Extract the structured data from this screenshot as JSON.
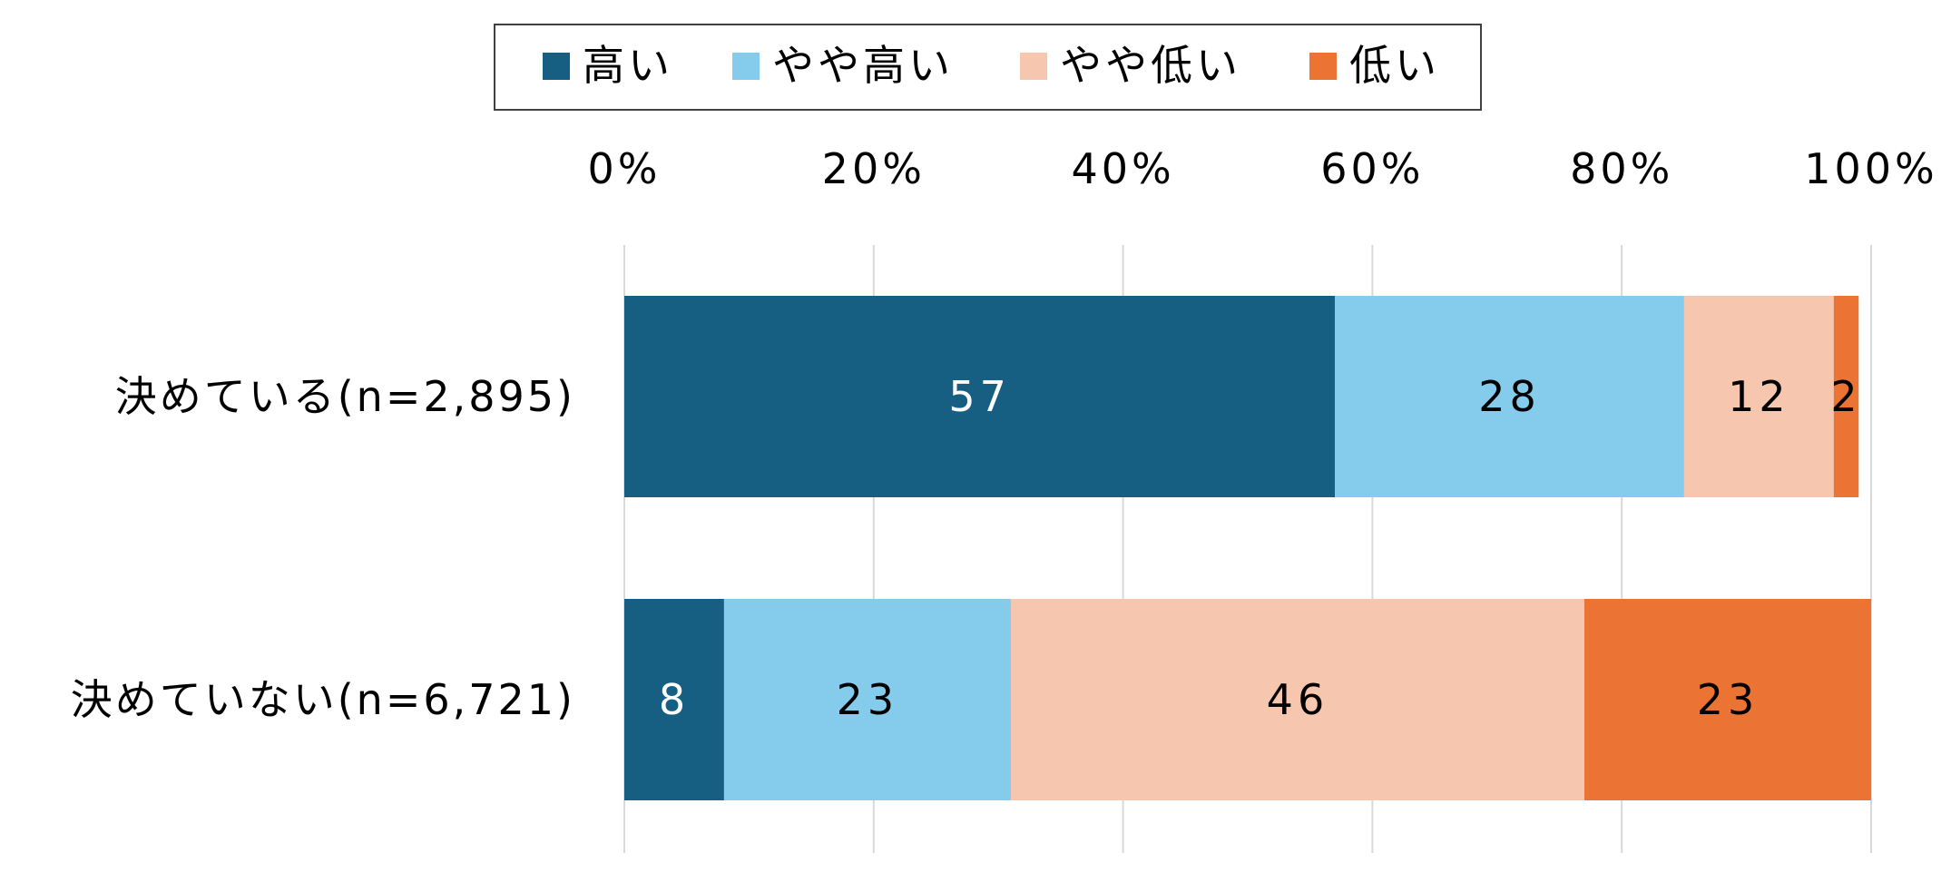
{
  "chart_data": {
    "type": "bar",
    "orientation": "horizontal",
    "stacked": "percent",
    "legend_position": "top",
    "grid": "vertical",
    "categories": [
      "決めている(n=2,895)",
      "決めていない(n=6,721)"
    ],
    "series": [
      {
        "name": "高い",
        "color": "#175F82",
        "label_color": "#ffffff",
        "values": [
          57,
          8
        ]
      },
      {
        "name": "やや高い",
        "color": "#84CBEC",
        "label_color": "#000000",
        "values": [
          28,
          23
        ]
      },
      {
        "name": "やや低い",
        "color": "#F6C6AE",
        "label_color": "#000000",
        "values": [
          12,
          46
        ]
      },
      {
        "name": "低い",
        "color": "#EB7334",
        "label_color": "#000000",
        "values": [
          2,
          23
        ]
      }
    ],
    "xlim": [
      0,
      100
    ],
    "xticks": [
      0,
      20,
      40,
      60,
      80,
      100
    ],
    "xtick_labels": [
      "0%",
      "20%",
      "40%",
      "60%",
      "80%",
      "100%"
    ]
  }
}
